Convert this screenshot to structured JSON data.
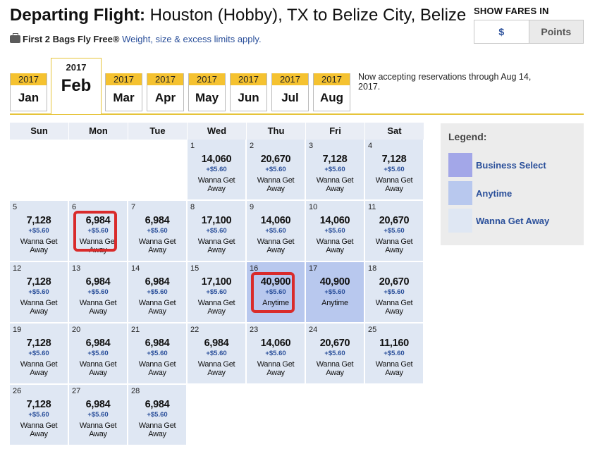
{
  "header": {
    "title_lead": "Departing Flight:",
    "title_route": " Houston (Hobby), TX to Belize City, Belize",
    "bags_bold": "First 2 Bags Fly Free®",
    "bags_note": " Weight, size & excess limits apply.",
    "show_fares_label": "SHOW FARES IN",
    "fare_options": [
      "$",
      "Points"
    ],
    "selected_fare_option": "$"
  },
  "months": [
    {
      "year": "2017",
      "month": "Jan",
      "active": false
    },
    {
      "year": "2017",
      "month": "Feb",
      "active": true
    },
    {
      "year": "2017",
      "month": "Mar",
      "active": false
    },
    {
      "year": "2017",
      "month": "Apr",
      "active": false
    },
    {
      "year": "2017",
      "month": "May",
      "active": false
    },
    {
      "year": "2017",
      "month": "Jun",
      "active": false
    },
    {
      "year": "2017",
      "month": "Jul",
      "active": false
    },
    {
      "year": "2017",
      "month": "Aug",
      "active": false
    }
  ],
  "accepting_note": "Now accepting reservations through Aug 14, 2017.",
  "weekdays": [
    "Sun",
    "Mon",
    "Tue",
    "Wed",
    "Thu",
    "Fri",
    "Sat"
  ],
  "first_weekday_index": 3,
  "days": [
    {
      "day": "1",
      "points": "14,060",
      "tax": "+$5.60",
      "fare": "Wanna Get Away"
    },
    {
      "day": "2",
      "points": "20,670",
      "tax": "+$5.60",
      "fare": "Wanna Get Away"
    },
    {
      "day": "3",
      "points": "7,128",
      "tax": "+$5.60",
      "fare": "Wanna Get Away"
    },
    {
      "day": "4",
      "points": "7,128",
      "tax": "+$5.60",
      "fare": "Wanna Get Away"
    },
    {
      "day": "5",
      "points": "7,128",
      "tax": "+$5.60",
      "fare": "Wanna Get Away"
    },
    {
      "day": "6",
      "points": "6,984",
      "tax": "+$5.60",
      "fare": "Wanna Get Away",
      "highlighted": true
    },
    {
      "day": "7",
      "points": "6,984",
      "tax": "+$5.60",
      "fare": "Wanna Get Away"
    },
    {
      "day": "8",
      "points": "17,100",
      "tax": "+$5.60",
      "fare": "Wanna Get Away"
    },
    {
      "day": "9",
      "points": "14,060",
      "tax": "+$5.60",
      "fare": "Wanna Get Away"
    },
    {
      "day": "10",
      "points": "14,060",
      "tax": "+$5.60",
      "fare": "Wanna Get Away"
    },
    {
      "day": "11",
      "points": "20,670",
      "tax": "+$5.60",
      "fare": "Wanna Get Away"
    },
    {
      "day": "12",
      "points": "7,128",
      "tax": "+$5.60",
      "fare": "Wanna Get Away"
    },
    {
      "day": "13",
      "points": "6,984",
      "tax": "+$5.60",
      "fare": "Wanna Get Away"
    },
    {
      "day": "14",
      "points": "6,984",
      "tax": "+$5.60",
      "fare": "Wanna Get Away"
    },
    {
      "day": "15",
      "points": "17,100",
      "tax": "+$5.60",
      "fare": "Wanna Get Away"
    },
    {
      "day": "16",
      "points": "40,900",
      "tax": "+$5.60",
      "fare": "Anytime",
      "highlighted": true
    },
    {
      "day": "17",
      "points": "40,900",
      "tax": "+$5.60",
      "fare": "Anytime"
    },
    {
      "day": "18",
      "points": "20,670",
      "tax": "+$5.60",
      "fare": "Wanna Get Away"
    },
    {
      "day": "19",
      "points": "7,128",
      "tax": "+$5.60",
      "fare": "Wanna Get Away"
    },
    {
      "day": "20",
      "points": "6,984",
      "tax": "+$5.60",
      "fare": "Wanna Get Away"
    },
    {
      "day": "21",
      "points": "6,984",
      "tax": "+$5.60",
      "fare": "Wanna Get Away"
    },
    {
      "day": "22",
      "points": "6,984",
      "tax": "+$5.60",
      "fare": "Wanna Get Away"
    },
    {
      "day": "23",
      "points": "14,060",
      "tax": "+$5.60",
      "fare": "Wanna Get Away"
    },
    {
      "day": "24",
      "points": "20,670",
      "tax": "+$5.60",
      "fare": "Wanna Get Away"
    },
    {
      "day": "25",
      "points": "11,160",
      "tax": "+$5.60",
      "fare": "Wanna Get Away"
    },
    {
      "day": "26",
      "points": "7,128",
      "tax": "+$5.60",
      "fare": "Wanna Get Away"
    },
    {
      "day": "27",
      "points": "6,984",
      "tax": "+$5.60",
      "fare": "Wanna Get Away"
    },
    {
      "day": "28",
      "points": "6,984",
      "tax": "+$5.60",
      "fare": "Wanna Get Away"
    }
  ],
  "legend": {
    "title": "Legend:",
    "items": [
      {
        "label": "Business Select",
        "color": "#a3a7e8"
      },
      {
        "label": "Anytime",
        "color": "#b8c8ee"
      },
      {
        "label": "Wanna Get Away",
        "color": "#dfe7f3"
      }
    ]
  },
  "colors": {
    "accent_blue": "#2a4f9a",
    "tab_gold": "#f5c230",
    "highlight_red": "#d92b2b"
  }
}
